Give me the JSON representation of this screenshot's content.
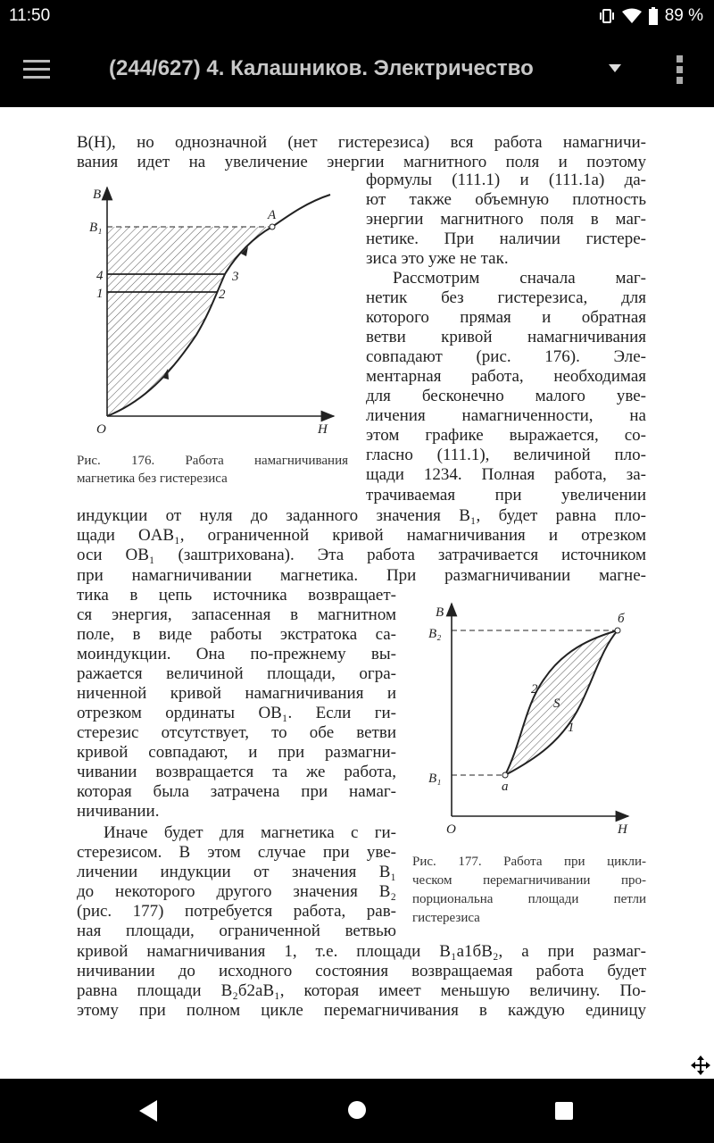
{
  "status_bar": {
    "time": "11:50",
    "battery": "89 %",
    "icons": [
      "vibrate-icon",
      "wifi-icon",
      "battery-icon"
    ]
  },
  "toolbar": {
    "title": "(244/627) 4. Калашников. Электричество",
    "icons": [
      "menu-icon",
      "dropdown-icon",
      "more-vert-icon"
    ]
  },
  "text": {
    "top": [
      "B(H), но однозначной (нет гистерезиса) вся работа намагничи-",
      "вания идет на увеличение энергии магнитного поля и поэтому"
    ],
    "right_col": [
      "формулы (111.1) и (111.1а) да-",
      "ют также объемную плотность",
      "энергии магнитного поля в маг-",
      "нетике. При наличии гистере-",
      "зиса это уже не так.",
      "Рассмотрим сначала маг-",
      "нетик без гистерезиса, для",
      "которого прямая и обратная",
      "ветви кривой намагничивания",
      "совпадают (рис. 176). Эле-",
      "ментарная работа, необходимая",
      "для бесконечно малого уве-",
      "личения намагниченности, на",
      "этом графике выражается, со-",
      "гласно (111.1), величиной пло-",
      "щади 1234. Полная работа, за-",
      "трачиваемая при увеличении"
    ],
    "middle": [
      "индукции от нуля до заданного значения B₁, будет равна пло-",
      "щади OAB₁, ограниченной кривой намагничивания и отрезком",
      "оси OB₁ (заштрихована). Эта работа затрачивается источником",
      "при намагничивании магнетика. При размагничивании магне-"
    ],
    "left_col": [
      "тика в цепь источника возвращает-",
      "ся энергия, запасенная в магнитном",
      "поле, в виде работы экстратока са-",
      "моиндукции. Она по-прежнему вы-",
      "ражается величиной площади, огра-",
      "ниченной кривой намагничивания и",
      "отрезком ординаты OB₁. Если ги-",
      "стерезис отсутствует, то обе ветви",
      "кривой совпадают, и при размагни-",
      "чивании возвращается та же работа,",
      "которая была затрачена при намаг-",
      "ничивании.",
      "Иначе будет для магнетика с ги-",
      "стерезисом. В этом случае при уве-",
      "личении индукции от значения B₁",
      "до некоторого другого значения B₂",
      "(рис. 177) потребуется работа, рав-",
      "ная площади, ограниченной ветвью"
    ],
    "bottom": [
      "кривой намагничивания 1, т.е. площади B₁a1бB₂, а при размаг-",
      "ничивании до исходного состояния возвращаемая работа будет",
      "равна площади B₂б2aB₁, которая имеет меньшую величину. По-",
      "этому при полном цикле перемагничивания в каждую единицу"
    ]
  },
  "fig176": {
    "caption": [
      "Рис. 176.   Работа намагничивания",
      "магнетика без гистерезиса"
    ],
    "labels": {
      "B": "B",
      "B1": "B₁",
      "p4": "4",
      "p1": "1",
      "p3": "3",
      "p2": "2",
      "A": "A",
      "O": "O",
      "H": "H"
    }
  },
  "fig177": {
    "caption": [
      "Рис. 177.   Работа при цикли-",
      "ческом перемагничивании про-",
      "порциональна площади петли",
      "гистерезиса"
    ],
    "labels": {
      "B": "B",
      "B2": "B₂",
      "B1": "B₁",
      "a": "a",
      "b": "б",
      "c2": "2",
      "S": "S",
      "c1": "1",
      "O": "O",
      "H": "H"
    }
  },
  "nav_bar": {
    "icons": [
      "back-icon",
      "home-icon",
      "recents-icon"
    ]
  },
  "overlay": {
    "icons": [
      "move-icon"
    ]
  }
}
